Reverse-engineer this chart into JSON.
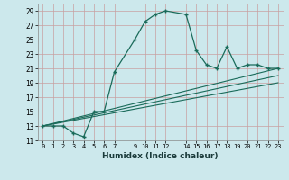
{
  "xlabel": "Humidex (Indice chaleur)",
  "bg_color": "#cce8ec",
  "grid_color": "#c8a0a0",
  "line_color": "#1a6b5a",
  "xlim": [
    -0.5,
    23.5
  ],
  "ylim": [
    11,
    30
  ],
  "xticks": [
    0,
    1,
    2,
    3,
    4,
    5,
    6,
    7,
    9,
    10,
    11,
    12,
    14,
    15,
    16,
    17,
    18,
    19,
    20,
    21,
    22,
    23
  ],
  "yticks": [
    11,
    13,
    15,
    17,
    19,
    21,
    23,
    25,
    27,
    29
  ],
  "line1_x": [
    0,
    1,
    2,
    3,
    4,
    5,
    6,
    7,
    9,
    10,
    11,
    12,
    14,
    15,
    16,
    17,
    18,
    19,
    20,
    21,
    22,
    23
  ],
  "line1_y": [
    13,
    13,
    13,
    12,
    11.5,
    15,
    15,
    20.5,
    25,
    27.5,
    28.5,
    29,
    28.5,
    23.5,
    21.5,
    21,
    24,
    21,
    21.5,
    21.5,
    21,
    21
  ],
  "line2_x": [
    0,
    23
  ],
  "line2_y": [
    13,
    21
  ],
  "line3_x": [
    0,
    23
  ],
  "line3_y": [
    13,
    20
  ],
  "line4_x": [
    0,
    23
  ],
  "line4_y": [
    13,
    19
  ]
}
